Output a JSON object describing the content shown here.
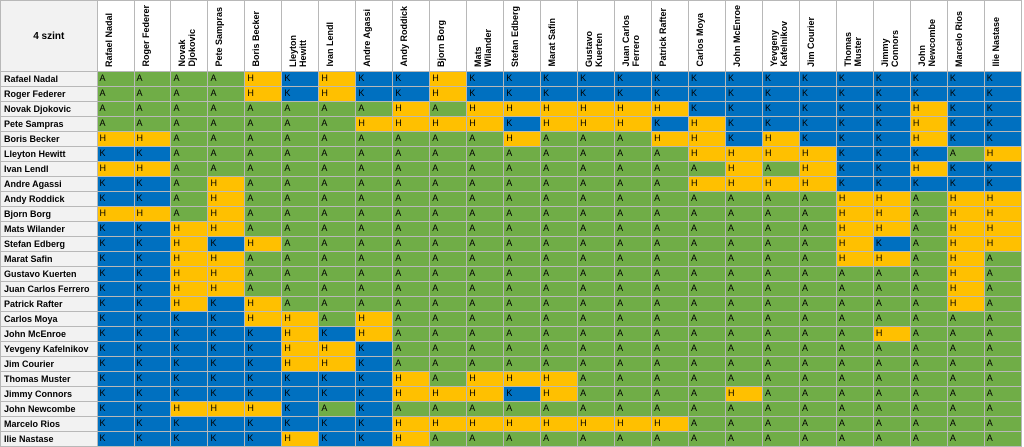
{
  "sheet": {
    "corner_label": "4 szint",
    "players": [
      "Rafael Nadal",
      "Roger Federer",
      "Novak Djokovic",
      "Pete Sampras",
      "Boris Becker",
      "Lleyton Hewitt",
      "Ivan Lendl",
      "Andre Agassi",
      "Andy Roddick",
      "Bjorn Borg",
      "Mats Wilander",
      "Stefan Edberg",
      "Marat Safin",
      "Gustavo Kuerten",
      "Juan Carlos Ferrero",
      "Patrick Rafter",
      "Carlos Moya",
      "John McEnroe",
      "Yevgeny Kafelnikov",
      "Jim Courier",
      "Thomas Muster",
      "Jimmy Connors",
      "John Newcombe",
      "Marcelo Rios",
      "Ilie Nastase"
    ],
    "column_headers": [
      "Rafael Nadal",
      "Roger Federer",
      "Novak\nDjokovic",
      "Pete Sampras",
      "Boris Becker",
      "Lleyton\nHewitt",
      "Ivan Lendl",
      "Andre Agassi",
      "Andy Roddick",
      "Bjorn Borg",
      "Mats\nWilander",
      "Stefan Edberg",
      "Marat Safin",
      "Gustavo\nKuerten",
      "Juan Carlos\nFerrero",
      "Patrick Rafter",
      "Carlos Moya",
      "John McEnroe",
      "Yevgeny\nKafelnikov",
      "Jim Courier",
      "Thomas\nMuster",
      "Jimmy\nConnors",
      "John\nNewcombe",
      "Marcelo Rios",
      "Ilie Nastase"
    ],
    "colors": {
      "A": "#70ad47",
      "H": "#ffc000",
      "K": "#0070c0"
    },
    "grid": [
      [
        "A",
        "A",
        "A",
        "A",
        "H",
        "K",
        "H",
        "K",
        "K",
        "H",
        "K",
        "K",
        "K",
        "K",
        "K",
        "K",
        "K",
        "K",
        "K",
        "K",
        "K",
        "K",
        "K",
        "K",
        "K"
      ],
      [
        "A",
        "A",
        "A",
        "A",
        "H",
        "K",
        "H",
        "K",
        "K",
        "H",
        "K",
        "K",
        "K",
        "K",
        "K",
        "K",
        "K",
        "K",
        "K",
        "K",
        "K",
        "K",
        "K",
        "K",
        "K"
      ],
      [
        "A",
        "A",
        "A",
        "A",
        "A",
        "A",
        "A",
        "A",
        "H",
        "A",
        "H",
        "H",
        "H",
        "H",
        "H",
        "H",
        "K",
        "K",
        "K",
        "K",
        "K",
        "K",
        "H",
        "K",
        "K"
      ],
      [
        "A",
        "A",
        "A",
        "A",
        "A",
        "A",
        "A",
        "H",
        "H",
        "H",
        "H",
        "K",
        "H",
        "H",
        "H",
        "K",
        "H",
        "K",
        "K",
        "K",
        "K",
        "K",
        "H",
        "K",
        "K"
      ],
      [
        "H",
        "H",
        "A",
        "A",
        "A",
        "A",
        "A",
        "A",
        "A",
        "A",
        "A",
        "H",
        "A",
        "A",
        "A",
        "H",
        "H",
        "K",
        "H",
        "K",
        "K",
        "K",
        "H",
        "K",
        "K"
      ],
      [
        "K",
        "K",
        "A",
        "A",
        "A",
        "A",
        "A",
        "A",
        "A",
        "A",
        "A",
        "A",
        "A",
        "A",
        "A",
        "A",
        "H",
        "H",
        "H",
        "H",
        "K",
        "K",
        "K",
        "A",
        "H"
      ],
      [
        "H",
        "H",
        "A",
        "A",
        "A",
        "A",
        "A",
        "A",
        "A",
        "A",
        "A",
        "A",
        "A",
        "A",
        "A",
        "A",
        "A",
        "H",
        "A",
        "H",
        "K",
        "K",
        "H",
        "K",
        "K"
      ],
      [
        "K",
        "K",
        "A",
        "H",
        "A",
        "A",
        "A",
        "A",
        "A",
        "A",
        "A",
        "A",
        "A",
        "A",
        "A",
        "A",
        "H",
        "H",
        "H",
        "H",
        "K",
        "K",
        "K",
        "K",
        "K"
      ],
      [
        "K",
        "K",
        "A",
        "H",
        "A",
        "A",
        "A",
        "A",
        "A",
        "A",
        "A",
        "A",
        "A",
        "A",
        "A",
        "A",
        "A",
        "A",
        "A",
        "A",
        "H",
        "H",
        "A",
        "H",
        "H"
      ],
      [
        "H",
        "H",
        "A",
        "H",
        "A",
        "A",
        "A",
        "A",
        "A",
        "A",
        "A",
        "A",
        "A",
        "A",
        "A",
        "A",
        "A",
        "A",
        "A",
        "A",
        "H",
        "H",
        "A",
        "H",
        "H"
      ],
      [
        "K",
        "K",
        "H",
        "H",
        "A",
        "A",
        "A",
        "A",
        "A",
        "A",
        "A",
        "A",
        "A",
        "A",
        "A",
        "A",
        "A",
        "A",
        "A",
        "A",
        "H",
        "H",
        "A",
        "H",
        "H"
      ],
      [
        "K",
        "K",
        "H",
        "K",
        "H",
        "A",
        "A",
        "A",
        "A",
        "A",
        "A",
        "A",
        "A",
        "A",
        "A",
        "A",
        "A",
        "A",
        "A",
        "A",
        "H",
        "K",
        "A",
        "H",
        "H"
      ],
      [
        "K",
        "K",
        "H",
        "H",
        "A",
        "A",
        "A",
        "A",
        "A",
        "A",
        "A",
        "A",
        "A",
        "A",
        "A",
        "A",
        "A",
        "A",
        "A",
        "A",
        "H",
        "H",
        "A",
        "H",
        "A"
      ],
      [
        "K",
        "K",
        "H",
        "H",
        "A",
        "A",
        "A",
        "A",
        "A",
        "A",
        "A",
        "A",
        "A",
        "A",
        "A",
        "A",
        "A",
        "A",
        "A",
        "A",
        "A",
        "A",
        "A",
        "H",
        "A"
      ],
      [
        "K",
        "K",
        "H",
        "H",
        "A",
        "A",
        "A",
        "A",
        "A",
        "A",
        "A",
        "A",
        "A",
        "A",
        "A",
        "A",
        "A",
        "A",
        "A",
        "A",
        "A",
        "A",
        "A",
        "H",
        "A"
      ],
      [
        "K",
        "K",
        "H",
        "K",
        "H",
        "A",
        "A",
        "A",
        "A",
        "A",
        "A",
        "A",
        "A",
        "A",
        "A",
        "A",
        "A",
        "A",
        "A",
        "A",
        "A",
        "A",
        "A",
        "H",
        "A"
      ],
      [
        "K",
        "K",
        "K",
        "K",
        "H",
        "H",
        "A",
        "H",
        "A",
        "A",
        "A",
        "A",
        "A",
        "A",
        "A",
        "A",
        "A",
        "A",
        "A",
        "A",
        "A",
        "A",
        "A",
        "A",
        "A"
      ],
      [
        "K",
        "K",
        "K",
        "K",
        "K",
        "H",
        "K",
        "H",
        "A",
        "A",
        "A",
        "A",
        "A",
        "A",
        "A",
        "A",
        "A",
        "A",
        "A",
        "A",
        "A",
        "H",
        "A",
        "A",
        "A"
      ],
      [
        "K",
        "K",
        "K",
        "K",
        "K",
        "H",
        "H",
        "K",
        "A",
        "A",
        "A",
        "A",
        "A",
        "A",
        "A",
        "A",
        "A",
        "A",
        "A",
        "A",
        "A",
        "A",
        "A",
        "A",
        "A"
      ],
      [
        "K",
        "K",
        "K",
        "K",
        "K",
        "H",
        "H",
        "K",
        "A",
        "A",
        "A",
        "A",
        "A",
        "A",
        "A",
        "A",
        "A",
        "A",
        "A",
        "A",
        "A",
        "A",
        "A",
        "A",
        "A"
      ],
      [
        "K",
        "K",
        "K",
        "K",
        "K",
        "K",
        "K",
        "K",
        "H",
        "A",
        "H",
        "H",
        "H",
        "A",
        "A",
        "A",
        "A",
        "A",
        "A",
        "A",
        "A",
        "A",
        "A",
        "A",
        "A"
      ],
      [
        "K",
        "K",
        "K",
        "K",
        "K",
        "K",
        "K",
        "K",
        "H",
        "H",
        "H",
        "K",
        "H",
        "A",
        "A",
        "A",
        "A",
        "H",
        "A",
        "A",
        "A",
        "A",
        "A",
        "A",
        "A"
      ],
      [
        "K",
        "K",
        "H",
        "H",
        "H",
        "K",
        "A",
        "K",
        "A",
        "A",
        "A",
        "A",
        "A",
        "A",
        "A",
        "A",
        "A",
        "A",
        "A",
        "A",
        "A",
        "A",
        "A",
        "A",
        "A"
      ],
      [
        "K",
        "K",
        "K",
        "K",
        "K",
        "K",
        "K",
        "K",
        "H",
        "H",
        "H",
        "H",
        "H",
        "H",
        "H",
        "H",
        "A",
        "A",
        "A",
        "A",
        "A",
        "A",
        "A",
        "A",
        "A"
      ],
      [
        "K",
        "K",
        "K",
        "K",
        "K",
        "H",
        "K",
        "K",
        "H",
        "A",
        "A",
        "A",
        "A",
        "A",
        "A",
        "A",
        "A",
        "A",
        "A",
        "A",
        "A",
        "A",
        "A",
        "A",
        "A"
      ]
    ]
  }
}
